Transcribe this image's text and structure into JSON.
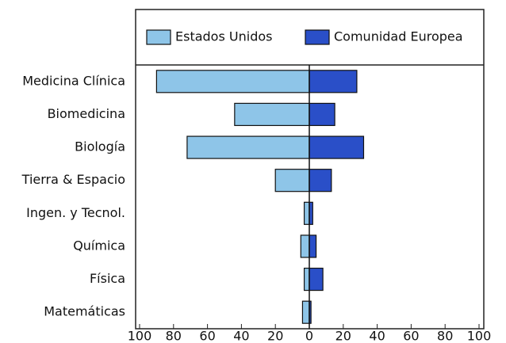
{
  "chart_data": {
    "type": "diverging-bar",
    "categories": [
      "Medicina Clínica",
      "Biomedicina",
      "Biología",
      "Tierra & Espacio",
      "Ingen. y Tecnol.",
      "Química",
      "Física",
      "Matemáticas"
    ],
    "series": [
      {
        "name": "Estados Unidos",
        "color": "#8ec5e8",
        "values": [
          -90,
          -44,
          -72,
          -20,
          -3,
          -5,
          -3,
          -4
        ]
      },
      {
        "name": "Comunidad Europea",
        "color": "#2a4fc8",
        "values": [
          28,
          15,
          32,
          13,
          2,
          4,
          8,
          1
        ]
      }
    ],
    "xlim": [
      -100,
      100
    ],
    "xticks": [
      {
        "value": -100,
        "label": "100"
      },
      {
        "value": -80,
        "label": "80"
      },
      {
        "value": -60,
        "label": "60"
      },
      {
        "value": -40,
        "label": "40"
      },
      {
        "value": -20,
        "label": "20"
      },
      0,
      20,
      40,
      60,
      80,
      100
    ]
  }
}
